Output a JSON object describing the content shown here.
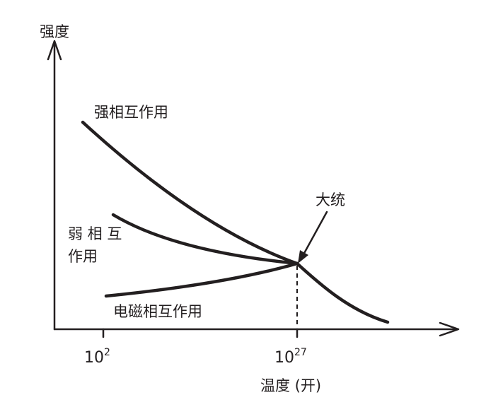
{
  "axes": {
    "y_label": "强度",
    "x_label": "温度 (开)",
    "x_ticks": [
      {
        "base": "10",
        "exp": "2"
      },
      {
        "base": "10",
        "exp": "27"
      }
    ]
  },
  "curves": {
    "strong": "强相互作用",
    "weak_line1": "弱 相 互",
    "weak_line2": "作用",
    "electromagnetic": "电磁相互作用"
  },
  "annotation": {
    "unification": "大统"
  },
  "colors": {
    "ink": "#231f20",
    "background": "#ffffff"
  }
}
